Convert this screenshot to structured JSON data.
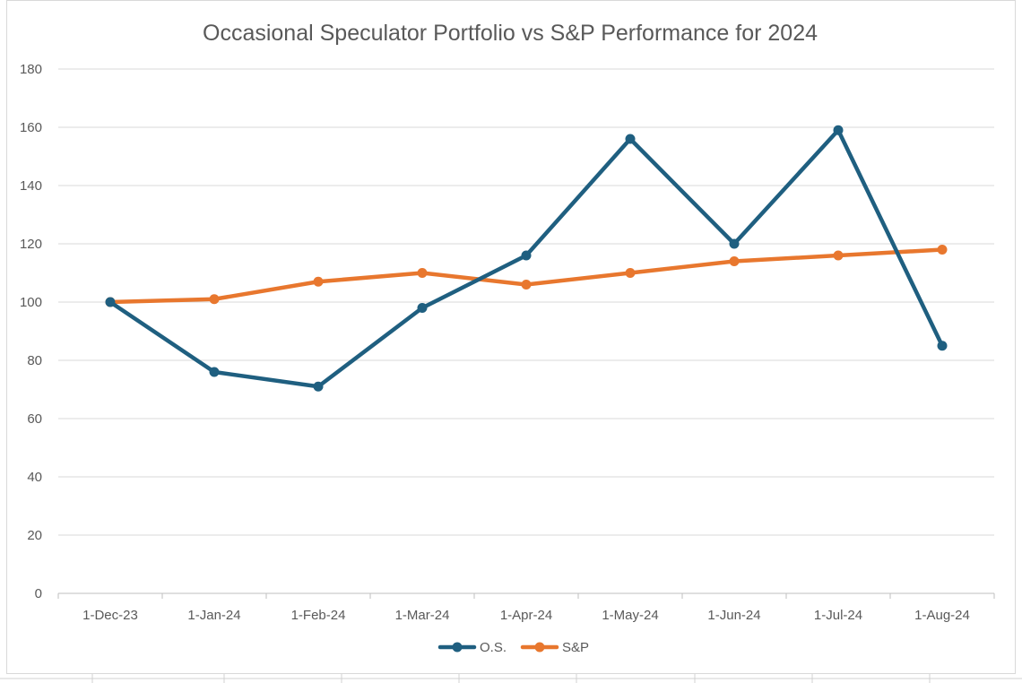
{
  "chart_data": {
    "type": "line",
    "title": "Occasional Speculator Portfolio vs S&P Performance for 2024",
    "xlabel": "",
    "ylabel": "",
    "categories": [
      "1-Dec-23",
      "1-Jan-24",
      "1-Feb-24",
      "1-Mar-24",
      "1-Apr-24",
      "1-May-24",
      "1-Jun-24",
      "1-Jul-24",
      "1-Aug-24"
    ],
    "ylim": [
      0,
      180
    ],
    "yticks": [
      "0",
      "20",
      "40",
      "60",
      "80",
      "100",
      "120",
      "140",
      "160",
      "180"
    ],
    "grid": true,
    "legend_position": "bottom",
    "series": [
      {
        "name": "O.S.",
        "color": "#1f5f80",
        "values": [
          100,
          76,
          71,
          98,
          116,
          156,
          120,
          159,
          85
        ]
      },
      {
        "name": "S&P",
        "color": "#e8772e",
        "values": [
          100,
          101,
          107,
          110,
          106,
          110,
          114,
          116,
          118
        ]
      }
    ]
  },
  "colors": {
    "gridline": "#d9d9d9",
    "axis_line": "#bfbfbf",
    "text": "#595959"
  }
}
